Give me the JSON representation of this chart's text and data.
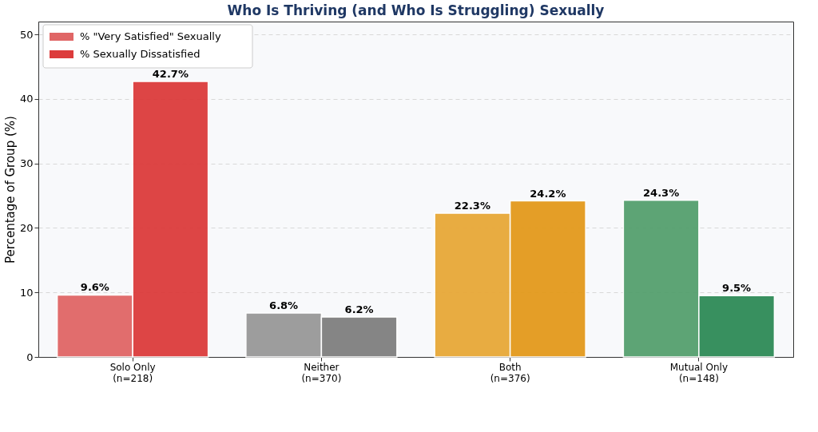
{
  "chart_data": {
    "type": "bar",
    "title": "Who Is Thriving (and Who Is Struggling) Sexually",
    "categories": [
      "Solo Only\n(n=218)",
      "Neither\n(n=370)",
      "Both\n(n=376)",
      "Mutual Only\n(n=148)"
    ],
    "ylabel": "Percentage of Group (%)",
    "series": [
      {
        "name": "% \"Very Satisfied\" Sexually",
        "color": "#e06666",
        "colors": [
          "#e06666",
          "#999999",
          "#e8a838",
          "#55a06e"
        ],
        "values": [
          9.6,
          6.8,
          22.3,
          24.3
        ]
      },
      {
        "name": "% Sexually Dissatisfied",
        "color": "#dc3c3c",
        "colors": [
          "#dc3c3c",
          "#7f7f7f",
          "#e39a1c",
          "#2e8b57"
        ],
        "values": [
          42.7,
          6.2,
          24.2,
          9.5
        ]
      }
    ],
    "ylim": [
      0,
      52
    ],
    "yticks": [
      0,
      10,
      20,
      30,
      40,
      50
    ],
    "grid": "y",
    "legend": "top left",
    "value_labels": [
      [
        "9.6%",
        "6.8%",
        "22.3%",
        "24.3%"
      ],
      [
        "42.7%",
        "6.2%",
        "24.2%",
        "9.5%"
      ]
    ]
  }
}
